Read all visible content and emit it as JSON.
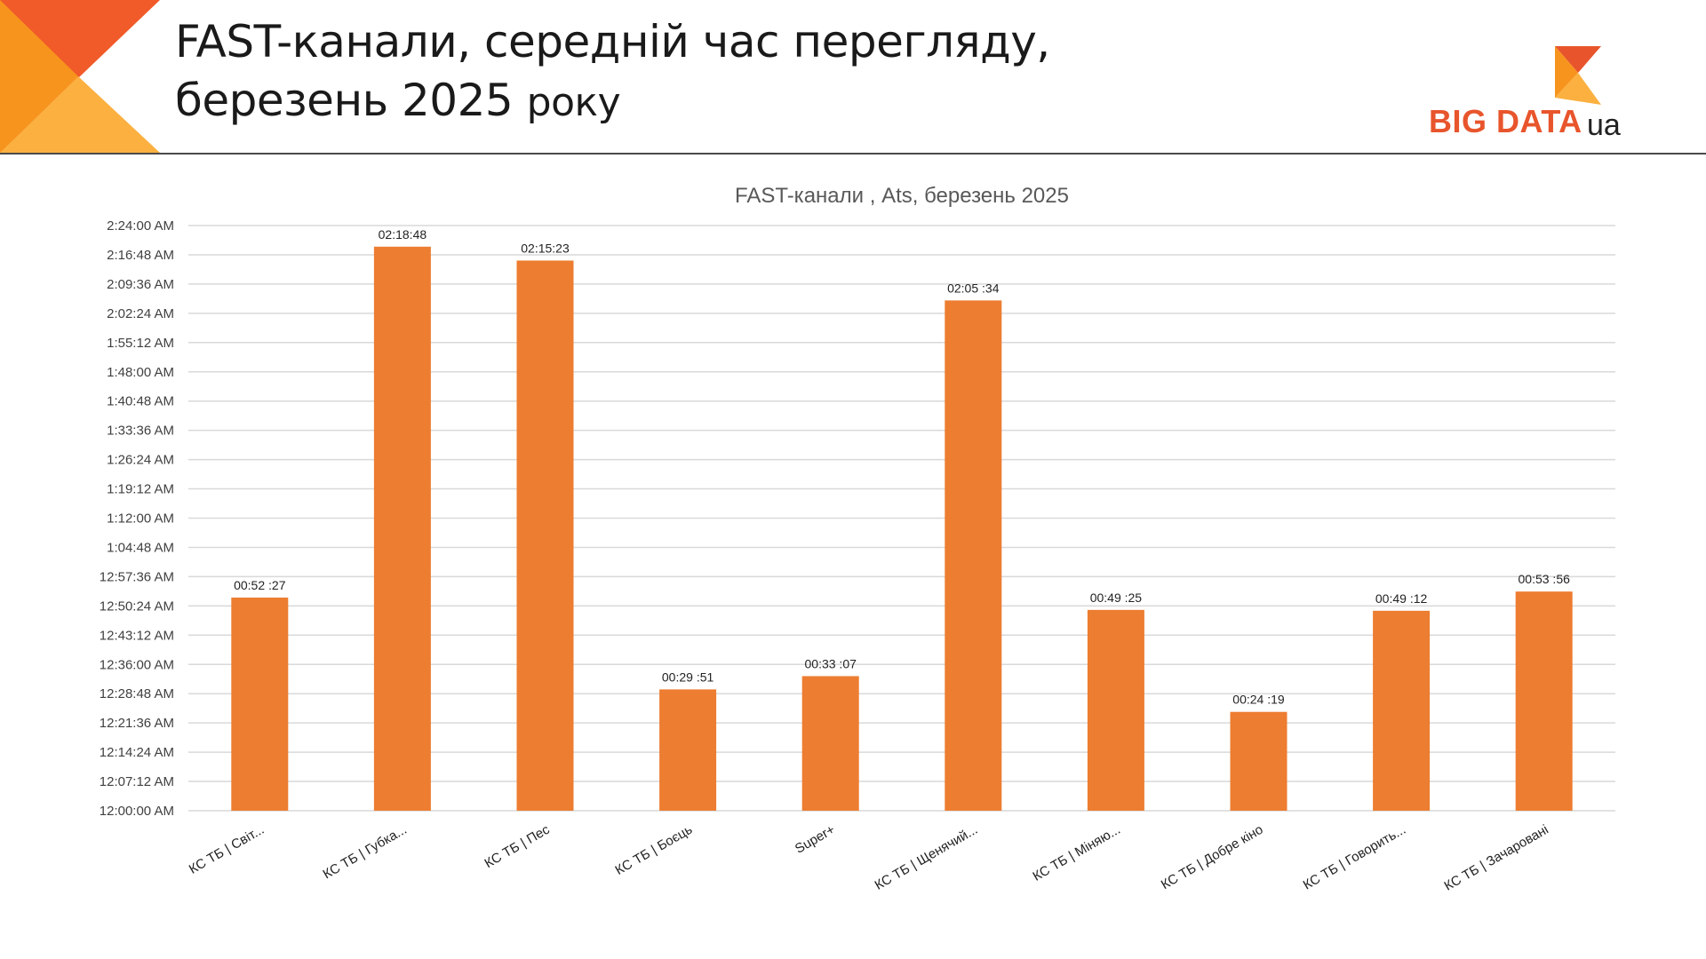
{
  "header": {
    "title_line1": "FAST-канали, середній час перегляду,",
    "title_line2_main": "березень 2025",
    "title_line2_suffix": "року"
  },
  "logo": {
    "brand": "BIG DATA",
    "suffix": "ua",
    "colors": {
      "orange": "#f7941d",
      "red": "#e8552c",
      "yellow": "#fbb040"
    }
  },
  "decor": {
    "colors": [
      "#f15a29",
      "#f7941d",
      "#fbb040"
    ]
  },
  "chart_data": {
    "type": "bar",
    "title": "FAST-канали , Ats, березень 2025",
    "xlabel": "",
    "ylabel": "",
    "categories": [
      "КС ТБ | Світ...",
      "КС ТБ | Губка...",
      "КС ТБ | Пес",
      "КС ТБ | Боєць",
      "Super+",
      "КС ТБ | Щенячий...",
      "КС ТБ | Міняю...",
      "КС ТБ | Добре кіно",
      "КС ТБ | Говорить...",
      "КС ТБ | Зачаровані"
    ],
    "values": [
      "00:52:27",
      "02:18:48",
      "02:15:23",
      "00:29:51",
      "00:33:07",
      "02:05:34",
      "00:49:25",
      "00:24:19",
      "00:49:12",
      "00:53:56"
    ],
    "value_labels": [
      "00:52 :27",
      "02:18:48",
      "02:15:23",
      "00:29 :51",
      "00:33 :07",
      "02:05 :34",
      "00:49 :25",
      "00:24 :19",
      "00:49 :12",
      "00:53 :56"
    ],
    "y_tick_labels": [
      "12:00:00 AM",
      "12:07:12 AM",
      "12:14:24 AM",
      "12:21:36 AM",
      "12:28:48 AM",
      "12:36:00 AM",
      "12:43:12 AM",
      "12:50:24 AM",
      "12:57:36 AM",
      "1:04:48 AM",
      "1:12:00 AM",
      "1:19:12 AM",
      "1:26:24 AM",
      "1:33:36 AM",
      "1:40:48 AM",
      "1:48:00 AM",
      "1:55:12 AM",
      "2:02:24 AM",
      "2:09:36 AM",
      "2:16:48 AM",
      "2:24:00 AM"
    ],
    "ylim": [
      "00:00:00",
      "02:24:00"
    ],
    "y_step": "00:07:12",
    "grid": true,
    "legend": "none",
    "bar_color": "#ed7d31",
    "grid_color": "#d9d9d9"
  }
}
